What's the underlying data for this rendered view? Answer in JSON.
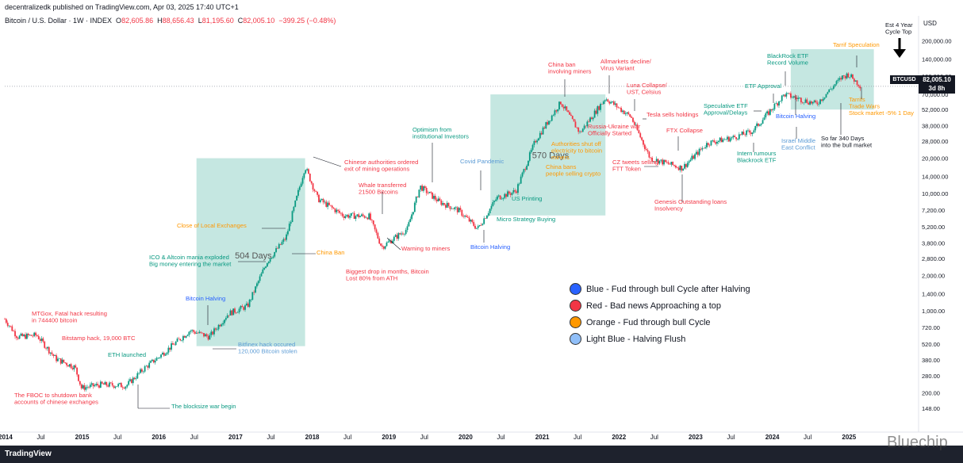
{
  "header": {
    "publisher": "decentralizedk published on TradingView.com, Apr 03, 2025 17:40 UTC+1",
    "symbol": "Bitcoin / U.S. Dollar · 1W · INDEX",
    "open_label": "O",
    "open": "82,605.86",
    "high_label": "H",
    "high": "88,656.43",
    "low_label": "L",
    "low": "81,195.60",
    "close_label": "C",
    "close": "82,005.10",
    "change": "−399.25 (−0.48%)"
  },
  "price_tag": {
    "ticker": "BTCUSD",
    "price": "82,005.10",
    "countdown": "3d 8h"
  },
  "footer": {
    "brand": "TradingView",
    "watermark": "Bluechip"
  },
  "legend": [
    {
      "color": "#2962ff",
      "label": "Blue  - Fud through bull Cycle after Halving"
    },
    {
      "color": "#f23645",
      "label": "Red - Bad news Approaching a top"
    },
    {
      "color": "#ff9800",
      "label": "Orange  - Fud through bull Cycle"
    },
    {
      "color": "#90bff9",
      "label": "Light Blue - Halving Flush"
    }
  ],
  "chart_data": {
    "type": "candlestick",
    "title": "Bitcoin / U.S. Dollar · 1W · INDEX",
    "y_scale": "log",
    "ylim": [
      100,
      280000
    ],
    "y_axis_label": "USD",
    "y_ticks": [
      148,
      200,
      280,
      380,
      520,
      720,
      1000,
      1400,
      2000,
      2800,
      3800,
      5200,
      7200,
      10000,
      14000,
      20000,
      28000,
      38000,
      52000,
      70000,
      100000,
      140000,
      200000
    ],
    "y_tick_labels": [
      "148.00",
      "200.00",
      "280.00",
      "380.00",
      "520.00",
      "720.00",
      "1,000.00",
      "1,400.00",
      "2,000.00",
      "2,800.00",
      "3,800.00",
      "5,200.00",
      "7,200.00",
      "10,000.00",
      "14,000.00",
      "20,000.00",
      "28,000.00",
      "38,000.00",
      "52,000.00",
      "70,000.00",
      "100,000.00",
      "140,000.00",
      "200,000.00"
    ],
    "x_ticks": [
      "2014",
      "Jul",
      "2015",
      "Jul",
      "2016",
      "Jul",
      "2017",
      "Jul",
      "2018",
      "Jul",
      "2019",
      "Jul",
      "2020",
      "Jul",
      "2021",
      "Jul",
      "2022",
      "Jul",
      "2023",
      "Jul",
      "2024",
      "Jul",
      "2025"
    ],
    "x_range": [
      "2014-01",
      "2025-12"
    ],
    "price_series": [
      {
        "t": "2014-01",
        "v": 850
      },
      {
        "t": "2014-03",
        "v": 600
      },
      {
        "t": "2014-06",
        "v": 620
      },
      {
        "t": "2014-09",
        "v": 390
      },
      {
        "t": "2014-12",
        "v": 330
      },
      {
        "t": "2015-01",
        "v": 220
      },
      {
        "t": "2015-04",
        "v": 235
      },
      {
        "t": "2015-08",
        "v": 230
      },
      {
        "t": "2015-11",
        "v": 330
      },
      {
        "t": "2016-01",
        "v": 400
      },
      {
        "t": "2016-06",
        "v": 680
      },
      {
        "t": "2016-09",
        "v": 600
      },
      {
        "t": "2016-12",
        "v": 950
      },
      {
        "t": "2017-03",
        "v": 1100
      },
      {
        "t": "2017-06",
        "v": 2600
      },
      {
        "t": "2017-09",
        "v": 4200
      },
      {
        "t": "2017-12",
        "v": 17000
      },
      {
        "t": "2018-02",
        "v": 9000
      },
      {
        "t": "2018-06",
        "v": 6500
      },
      {
        "t": "2018-10",
        "v": 6400
      },
      {
        "t": "2018-12",
        "v": 3500
      },
      {
        "t": "2019-04",
        "v": 5000
      },
      {
        "t": "2019-06",
        "v": 11500
      },
      {
        "t": "2019-09",
        "v": 8500
      },
      {
        "t": "2019-12",
        "v": 7200
      },
      {
        "t": "2020-03",
        "v": 5000
      },
      {
        "t": "2020-06",
        "v": 9200
      },
      {
        "t": "2020-09",
        "v": 10500
      },
      {
        "t": "2020-12",
        "v": 28000
      },
      {
        "t": "2021-04",
        "v": 60000
      },
      {
        "t": "2021-07",
        "v": 33000
      },
      {
        "t": "2021-11",
        "v": 65000
      },
      {
        "t": "2022-03",
        "v": 45000
      },
      {
        "t": "2022-06",
        "v": 20000
      },
      {
        "t": "2022-11",
        "v": 16500
      },
      {
        "t": "2023-03",
        "v": 27000
      },
      {
        "t": "2023-07",
        "v": 30000
      },
      {
        "t": "2023-10",
        "v": 34000
      },
      {
        "t": "2024-03",
        "v": 70000
      },
      {
        "t": "2024-08",
        "v": 58000
      },
      {
        "t": "2024-12",
        "v": 98000
      },
      {
        "t": "2025-01",
        "v": 104000
      },
      {
        "t": "2025-03",
        "v": 82005
      }
    ],
    "horizontal_line": 82005.1,
    "zones": [
      {
        "name": "504 Days",
        "from": "2016-07",
        "to": "2017-12",
        "low": 500,
        "high": 20000
      },
      {
        "name": "570 Days",
        "from": "2020-05",
        "to": "2021-11",
        "low": 6500,
        "high": 70000
      },
      {
        "name": "",
        "from": "2024-04",
        "to": "2025-05",
        "low": 52000,
        "high": 170000
      }
    ],
    "zone_labels": [
      "504 Days",
      "570 Days"
    ],
    "annotations": [
      {
        "text": "MTGox, Fatal hack resulting\nin 744400 bitcoin",
        "color": "#f23645"
      },
      {
        "text": "Bitstamp hack, 19,000 BTC",
        "color": "#f23645"
      },
      {
        "text": "ETH launched",
        "color": "#089981"
      },
      {
        "text": "The FBOC to shutdown bank\naccounts of chinese exchanges",
        "color": "#f23645"
      },
      {
        "text": "The blocksize war begin",
        "color": "#089981"
      },
      {
        "text": "Bitcoin Halving",
        "color": "#2962ff"
      },
      {
        "text": "Bitfinex hack occured\n120,000 Bitcoin stolen",
        "color": "#5b9bd5"
      },
      {
        "text": "ICO & Altcoin mania exploded\nBig money entering the market",
        "color": "#089981"
      },
      {
        "text": "Close of Local Exchanges",
        "color": "#ff9800"
      },
      {
        "text": "China Ban",
        "color": "#ff9800"
      },
      {
        "text": "Chinese authorities ordered\nexit of mining operations",
        "color": "#f23645"
      },
      {
        "text": "Whale transferred\n21500 Bitcoins",
        "color": "#f23645"
      },
      {
        "text": "Biggest drop in months, Bitcoin\nLost 80% from ATH",
        "color": "#f23645"
      },
      {
        "text": "Warning to miners",
        "color": "#f23645"
      },
      {
        "text": "Optimism from\ninstitutional Investors",
        "color": "#089981"
      },
      {
        "text": "Covid Pandemic",
        "color": "#5b9bd5"
      },
      {
        "text": "Bitcoin Halving",
        "color": "#2962ff"
      },
      {
        "text": "US Printing",
        "color": "#089981"
      },
      {
        "text": "Micro Strategy Buying",
        "color": "#089981"
      },
      {
        "text": "China ban\ninvolving miners",
        "color": "#f23645"
      },
      {
        "text": "Allmarkets decline/\nVirus Variant",
        "color": "#f23645"
      },
      {
        "text": "Authorities shut off\nelectricity to bitcoin\nminers",
        "color": "#ff9800"
      },
      {
        "text": "China bans\npeople selling crypto",
        "color": "#ff9800"
      },
      {
        "text": "Russia-Ukraine war\nOfficially Started",
        "color": "#f23645"
      },
      {
        "text": "Luna Collapse/\nUST, Celsius",
        "color": "#f23645"
      },
      {
        "text": "Tesla sells holdings",
        "color": "#f23645"
      },
      {
        "text": "FTX Collapse",
        "color": "#f23645"
      },
      {
        "text": "CZ tweets selling\nFTT Token",
        "color": "#f23645"
      },
      {
        "text": "Genesis Outstanding loans\nInsolvency",
        "color": "#f23645"
      },
      {
        "text": "Speculative ETF\nApproval/Delays",
        "color": "#089981"
      },
      {
        "text": "ETF Approval",
        "color": "#089981"
      },
      {
        "text": "BlackRock ETF\nRecord Volume",
        "color": "#089981"
      },
      {
        "text": "Bitcoin Halving",
        "color": "#2962ff"
      },
      {
        "text": "Intern rumours\nBlackrock ETF",
        "color": "#089981"
      },
      {
        "text": "Israel Middle\nEast Conflict",
        "color": "#5b9bd5"
      },
      {
        "text": "Tarrif Speculation",
        "color": "#ff9800"
      },
      {
        "text": "Tarrifs\nTrade Wars\nStock market -5% 1 Day",
        "color": "#ff9800"
      },
      {
        "text": "So far 340 Days\ninto the bull market",
        "color": "#131722"
      },
      {
        "text": "Est 4 Year\nCycle Top",
        "color": "#131722"
      }
    ]
  }
}
